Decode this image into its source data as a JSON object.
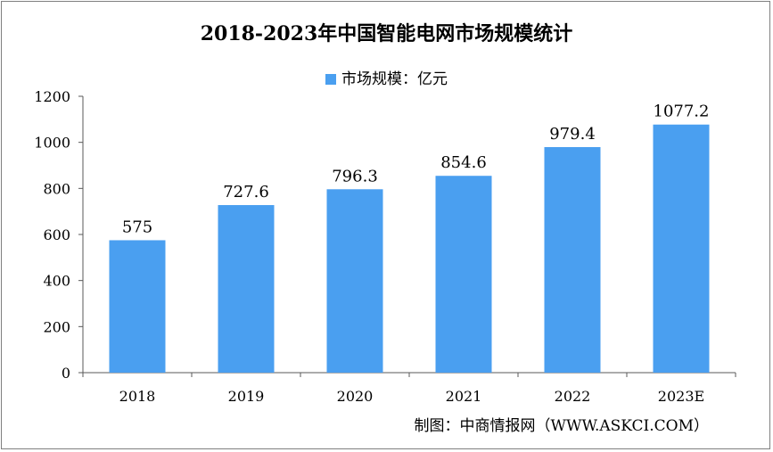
{
  "chart_data": {
    "type": "bar",
    "title": "2018-2023年中国智能电网市场规模统计",
    "legend": "市场规模：亿元",
    "categories": [
      "2018",
      "2019",
      "2020",
      "2021",
      "2022",
      "2023E"
    ],
    "values": [
      575,
      727.6,
      796.3,
      854.6,
      979.4,
      1077.2
    ],
    "value_labels": [
      "575",
      "727.6",
      "796.3",
      "854.6",
      "979.4",
      "1077.2"
    ],
    "y_ticks": [
      0,
      200,
      400,
      600,
      800,
      1000,
      1200
    ],
    "ylim": [
      0,
      1200
    ],
    "bar_color": "#4a9ff0",
    "grid": false,
    "xlabel": "",
    "ylabel": ""
  },
  "source": "制图：中商情报网（WWW.ASKCI.COM）"
}
